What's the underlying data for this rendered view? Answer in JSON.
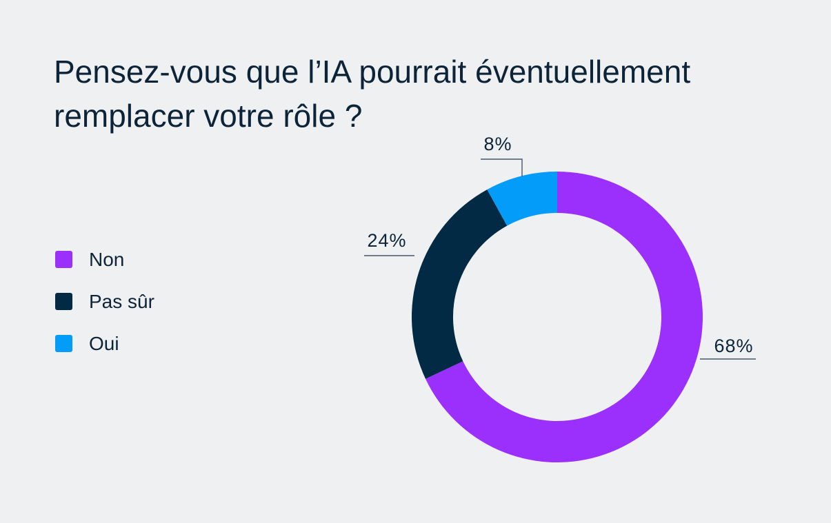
{
  "title": "Pensez-vous que l’IA pourrait éventuellement remplacer votre rôle ?",
  "chart_data": {
    "type": "pie",
    "subtype": "donut",
    "title": "Pensez-vous que l’IA pourrait éventuellement remplacer votre rôle ?",
    "categories": [
      "Non",
      "Pas sûr",
      "Oui"
    ],
    "values": [
      68,
      24,
      8
    ],
    "labels": [
      "68%",
      "24%",
      "8%"
    ],
    "colors": [
      "#9b2ffc",
      "#032a45",
      "#049cf9"
    ],
    "legend_position": "left",
    "start": "top, clockwise"
  }
}
